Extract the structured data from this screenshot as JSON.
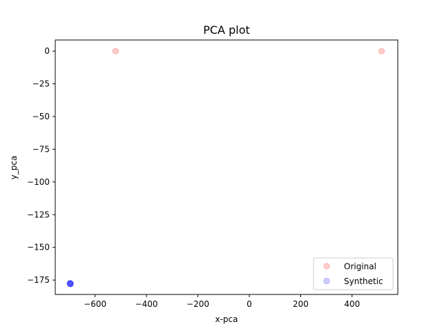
{
  "chart_data": {
    "type": "scatter",
    "title": "PCA plot",
    "xlabel": "x-pca",
    "ylabel": "y_pca",
    "xlim": [
      -755,
      578
    ],
    "ylim": [
      -186,
      8.5
    ],
    "xticks": [
      {
        "value": -600,
        "label": "−600"
      },
      {
        "value": -400,
        "label": "−400"
      },
      {
        "value": -200,
        "label": "−200"
      },
      {
        "value": 0,
        "label": "0"
      },
      {
        "value": 200,
        "label": "200"
      },
      {
        "value": 400,
        "label": "400"
      }
    ],
    "yticks": [
      {
        "value": 0,
        "label": "0"
      },
      {
        "value": -25,
        "label": "−25"
      },
      {
        "value": -50,
        "label": "−50"
      },
      {
        "value": -75,
        "label": "−75"
      },
      {
        "value": -100,
        "label": "−100"
      },
      {
        "value": -125,
        "label": "−125"
      },
      {
        "value": -150,
        "label": "−150"
      },
      {
        "value": -175,
        "label": "−175"
      }
    ],
    "grid": false,
    "legend_position": "lower-right",
    "series": [
      {
        "name": "Original",
        "color": "#ff0000",
        "alpha": 0.2,
        "points": [
          {
            "x": -520,
            "y": 0
          },
          {
            "x": 515,
            "y": 0
          }
        ]
      },
      {
        "name": "Synthetic",
        "color": "#0000ff",
        "alpha": 0.2,
        "points": [
          {
            "x": -697,
            "y": -177.5
          },
          {
            "x": -696,
            "y": -177.8
          },
          {
            "x": -698,
            "y": -177.3
          },
          {
            "x": -695,
            "y": -178.0
          },
          {
            "x": -697,
            "y": -177.9
          }
        ]
      }
    ]
  }
}
